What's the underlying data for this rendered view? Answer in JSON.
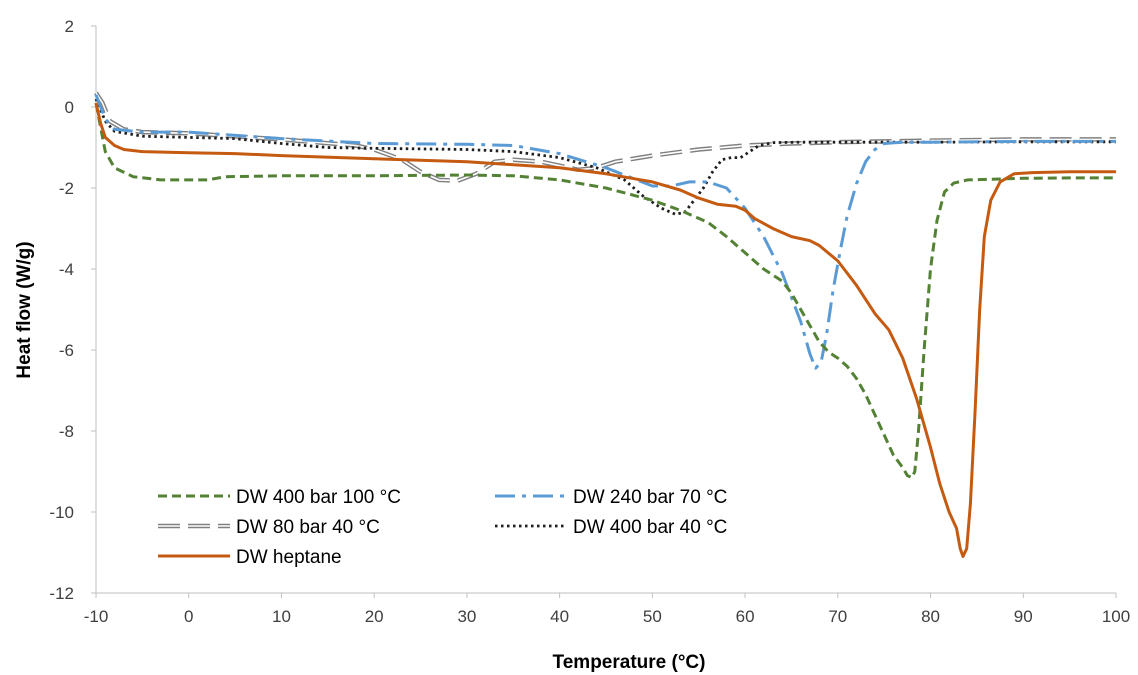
{
  "chart_data": {
    "type": "line",
    "title": "",
    "xlabel": "Temperature (°C)",
    "ylabel": "Heat flow (W/g)",
    "xlim": [
      -10,
      100
    ],
    "ylim": [
      -12,
      2
    ],
    "xticks": [
      -10,
      0,
      10,
      20,
      30,
      40,
      50,
      60,
      70,
      80,
      90,
      100
    ],
    "yticks": [
      2,
      0,
      -2,
      -4,
      -6,
      -8,
      -10,
      -12
    ],
    "xtick_labels": [
      "-10",
      "0",
      "10",
      "20",
      "30",
      "40",
      "50",
      "60",
      "70",
      "80",
      "90",
      "100"
    ],
    "ytick_labels": [
      "2",
      "0",
      "-2",
      "-4",
      "-6",
      "-8",
      "-10",
      "-12"
    ],
    "grid": false,
    "legend_position": "bottom-left",
    "series": [
      {
        "name": "DW 400 bar 100 °C",
        "color": "#548235",
        "style": "dashed",
        "points": [
          [
            -10,
            0.1
          ],
          [
            -9.5,
            -0.5
          ],
          [
            -9,
            -1.1
          ],
          [
            -8,
            -1.5
          ],
          [
            -6,
            -1.72
          ],
          [
            -3,
            -1.8
          ],
          [
            0,
            -1.8
          ],
          [
            2,
            -1.8
          ],
          [
            4,
            -1.72
          ],
          [
            10,
            -1.7
          ],
          [
            20,
            -1.7
          ],
          [
            30,
            -1.68
          ],
          [
            35,
            -1.7
          ],
          [
            40,
            -1.8
          ],
          [
            45,
            -2.0
          ],
          [
            50,
            -2.3
          ],
          [
            53,
            -2.55
          ],
          [
            56,
            -2.85
          ],
          [
            58,
            -3.2
          ],
          [
            60,
            -3.6
          ],
          [
            62,
            -4.0
          ],
          [
            64,
            -4.3
          ],
          [
            65,
            -4.6
          ],
          [
            66,
            -5.0
          ],
          [
            67,
            -5.4
          ],
          [
            68,
            -5.8
          ],
          [
            69,
            -6.05
          ],
          [
            70,
            -6.2
          ],
          [
            71,
            -6.4
          ],
          [
            72,
            -6.7
          ],
          [
            73,
            -7.1
          ],
          [
            74,
            -7.6
          ],
          [
            75,
            -8.1
          ],
          [
            76,
            -8.6
          ],
          [
            77,
            -8.9
          ],
          [
            77.5,
            -9.1
          ],
          [
            78,
            -9.15
          ],
          [
            78.3,
            -9.0
          ],
          [
            78.7,
            -8.0
          ],
          [
            79.3,
            -6.0
          ],
          [
            80,
            -4.0
          ],
          [
            80.7,
            -2.8
          ],
          [
            81.5,
            -2.1
          ],
          [
            82.5,
            -1.88
          ],
          [
            84,
            -1.8
          ],
          [
            87,
            -1.78
          ],
          [
            90,
            -1.76
          ],
          [
            95,
            -1.75
          ],
          [
            100,
            -1.75
          ]
        ]
      },
      {
        "name": "DW 240 bar 70 °C",
        "color": "#5B9BD5",
        "style": "dashdot",
        "points": [
          [
            -10,
            0.3
          ],
          [
            -9,
            -0.3
          ],
          [
            -8,
            -0.55
          ],
          [
            -5,
            -0.62
          ],
          [
            0,
            -0.62
          ],
          [
            10,
            -0.78
          ],
          [
            20,
            -0.9
          ],
          [
            30,
            -0.92
          ],
          [
            35,
            -0.95
          ],
          [
            40,
            -1.15
          ],
          [
            45,
            -1.5
          ],
          [
            50,
            -1.95
          ],
          [
            52,
            -1.95
          ],
          [
            54,
            -1.85
          ],
          [
            56,
            -1.85
          ],
          [
            58,
            -2.0
          ],
          [
            60,
            -2.5
          ],
          [
            62,
            -3.2
          ],
          [
            64,
            -4.1
          ],
          [
            66,
            -5.3
          ],
          [
            67,
            -6.1
          ],
          [
            67.6,
            -6.45
          ],
          [
            68.2,
            -6.3
          ],
          [
            68.8,
            -5.6
          ],
          [
            69.5,
            -4.5
          ],
          [
            70.3,
            -3.5
          ],
          [
            71,
            -2.7
          ],
          [
            72,
            -1.9
          ],
          [
            73,
            -1.35
          ],
          [
            74,
            -1.05
          ],
          [
            75,
            -0.9
          ],
          [
            77,
            -0.87
          ],
          [
            80,
            -0.87
          ],
          [
            90,
            -0.85
          ],
          [
            100,
            -0.85
          ]
        ]
      },
      {
        "name": "DW 80 bar 40 °C",
        "color": "#808080",
        "style": "double",
        "points": [
          [
            -10,
            0.35
          ],
          [
            -9.3,
            0.1
          ],
          [
            -8.5,
            -0.35
          ],
          [
            -7,
            -0.55
          ],
          [
            -5,
            -0.62
          ],
          [
            0,
            -0.65
          ],
          [
            10,
            -0.8
          ],
          [
            18,
            -0.95
          ],
          [
            20,
            -1.05
          ],
          [
            23,
            -1.3
          ],
          [
            25,
            -1.6
          ],
          [
            27,
            -1.8
          ],
          [
            29,
            -1.82
          ],
          [
            31,
            -1.65
          ],
          [
            33,
            -1.35
          ],
          [
            35,
            -1.3
          ],
          [
            38,
            -1.35
          ],
          [
            40,
            -1.45
          ],
          [
            42,
            -1.55
          ],
          [
            44,
            -1.5
          ],
          [
            46,
            -1.35
          ],
          [
            50,
            -1.2
          ],
          [
            55,
            -1.05
          ],
          [
            60,
            -0.95
          ],
          [
            65,
            -0.9
          ],
          [
            70,
            -0.87
          ],
          [
            80,
            -0.83
          ],
          [
            90,
            -0.8
          ],
          [
            100,
            -0.8
          ]
        ]
      },
      {
        "name": "DW 400 bar 40 °C",
        "color": "#1F1F1F",
        "style": "dotted",
        "points": [
          [
            -10,
            0.2
          ],
          [
            -9,
            -0.35
          ],
          [
            -8,
            -0.6
          ],
          [
            -5,
            -0.72
          ],
          [
            0,
            -0.75
          ],
          [
            5,
            -0.78
          ],
          [
            10,
            -0.9
          ],
          [
            15,
            -1.0
          ],
          [
            20,
            -1.02
          ],
          [
            30,
            -1.05
          ],
          [
            35,
            -1.1
          ],
          [
            40,
            -1.25
          ],
          [
            44,
            -1.5
          ],
          [
            47,
            -1.8
          ],
          [
            49,
            -2.2
          ],
          [
            51,
            -2.5
          ],
          [
            52.5,
            -2.65
          ],
          [
            53.5,
            -2.6
          ],
          [
            54.5,
            -2.3
          ],
          [
            55.5,
            -2.0
          ],
          [
            56.5,
            -1.6
          ],
          [
            57.5,
            -1.3
          ],
          [
            58.5,
            -1.25
          ],
          [
            59.5,
            -1.25
          ],
          [
            60.5,
            -1.1
          ],
          [
            61.5,
            -0.95
          ],
          [
            63,
            -0.88
          ],
          [
            66,
            -0.87
          ],
          [
            70,
            -0.87
          ],
          [
            80,
            -0.87
          ],
          [
            90,
            -0.86
          ],
          [
            100,
            -0.86
          ]
        ]
      },
      {
        "name": "DW heptane",
        "color": "#C55A11",
        "style": "solid",
        "points": [
          [
            -10,
            0.1
          ],
          [
            -9.5,
            -0.4
          ],
          [
            -9,
            -0.75
          ],
          [
            -8,
            -0.95
          ],
          [
            -7,
            -1.05
          ],
          [
            -5,
            -1.1
          ],
          [
            0,
            -1.13
          ],
          [
            5,
            -1.15
          ],
          [
            10,
            -1.2
          ],
          [
            20,
            -1.28
          ],
          [
            30,
            -1.35
          ],
          [
            40,
            -1.5
          ],
          [
            45,
            -1.65
          ],
          [
            50,
            -1.85
          ],
          [
            53,
            -2.05
          ],
          [
            55,
            -2.25
          ],
          [
            57,
            -2.4
          ],
          [
            59,
            -2.45
          ],
          [
            60,
            -2.55
          ],
          [
            61,
            -2.75
          ],
          [
            63,
            -3.0
          ],
          [
            65,
            -3.2
          ],
          [
            67,
            -3.3
          ],
          [
            68,
            -3.42
          ],
          [
            70,
            -3.8
          ],
          [
            72,
            -4.4
          ],
          [
            74,
            -5.1
          ],
          [
            75.5,
            -5.5
          ],
          [
            77,
            -6.2
          ],
          [
            78.5,
            -7.2
          ],
          [
            80,
            -8.4
          ],
          [
            81,
            -9.3
          ],
          [
            82,
            -10.0
          ],
          [
            82.8,
            -10.4
          ],
          [
            83.2,
            -10.9
          ],
          [
            83.5,
            -11.1
          ],
          [
            83.9,
            -10.9
          ],
          [
            84.3,
            -9.8
          ],
          [
            84.8,
            -7.5
          ],
          [
            85.3,
            -5.0
          ],
          [
            85.8,
            -3.2
          ],
          [
            86.5,
            -2.3
          ],
          [
            87.5,
            -1.85
          ],
          [
            89,
            -1.65
          ],
          [
            91,
            -1.62
          ],
          [
            95,
            -1.6
          ],
          [
            100,
            -1.6
          ]
        ]
      }
    ]
  }
}
